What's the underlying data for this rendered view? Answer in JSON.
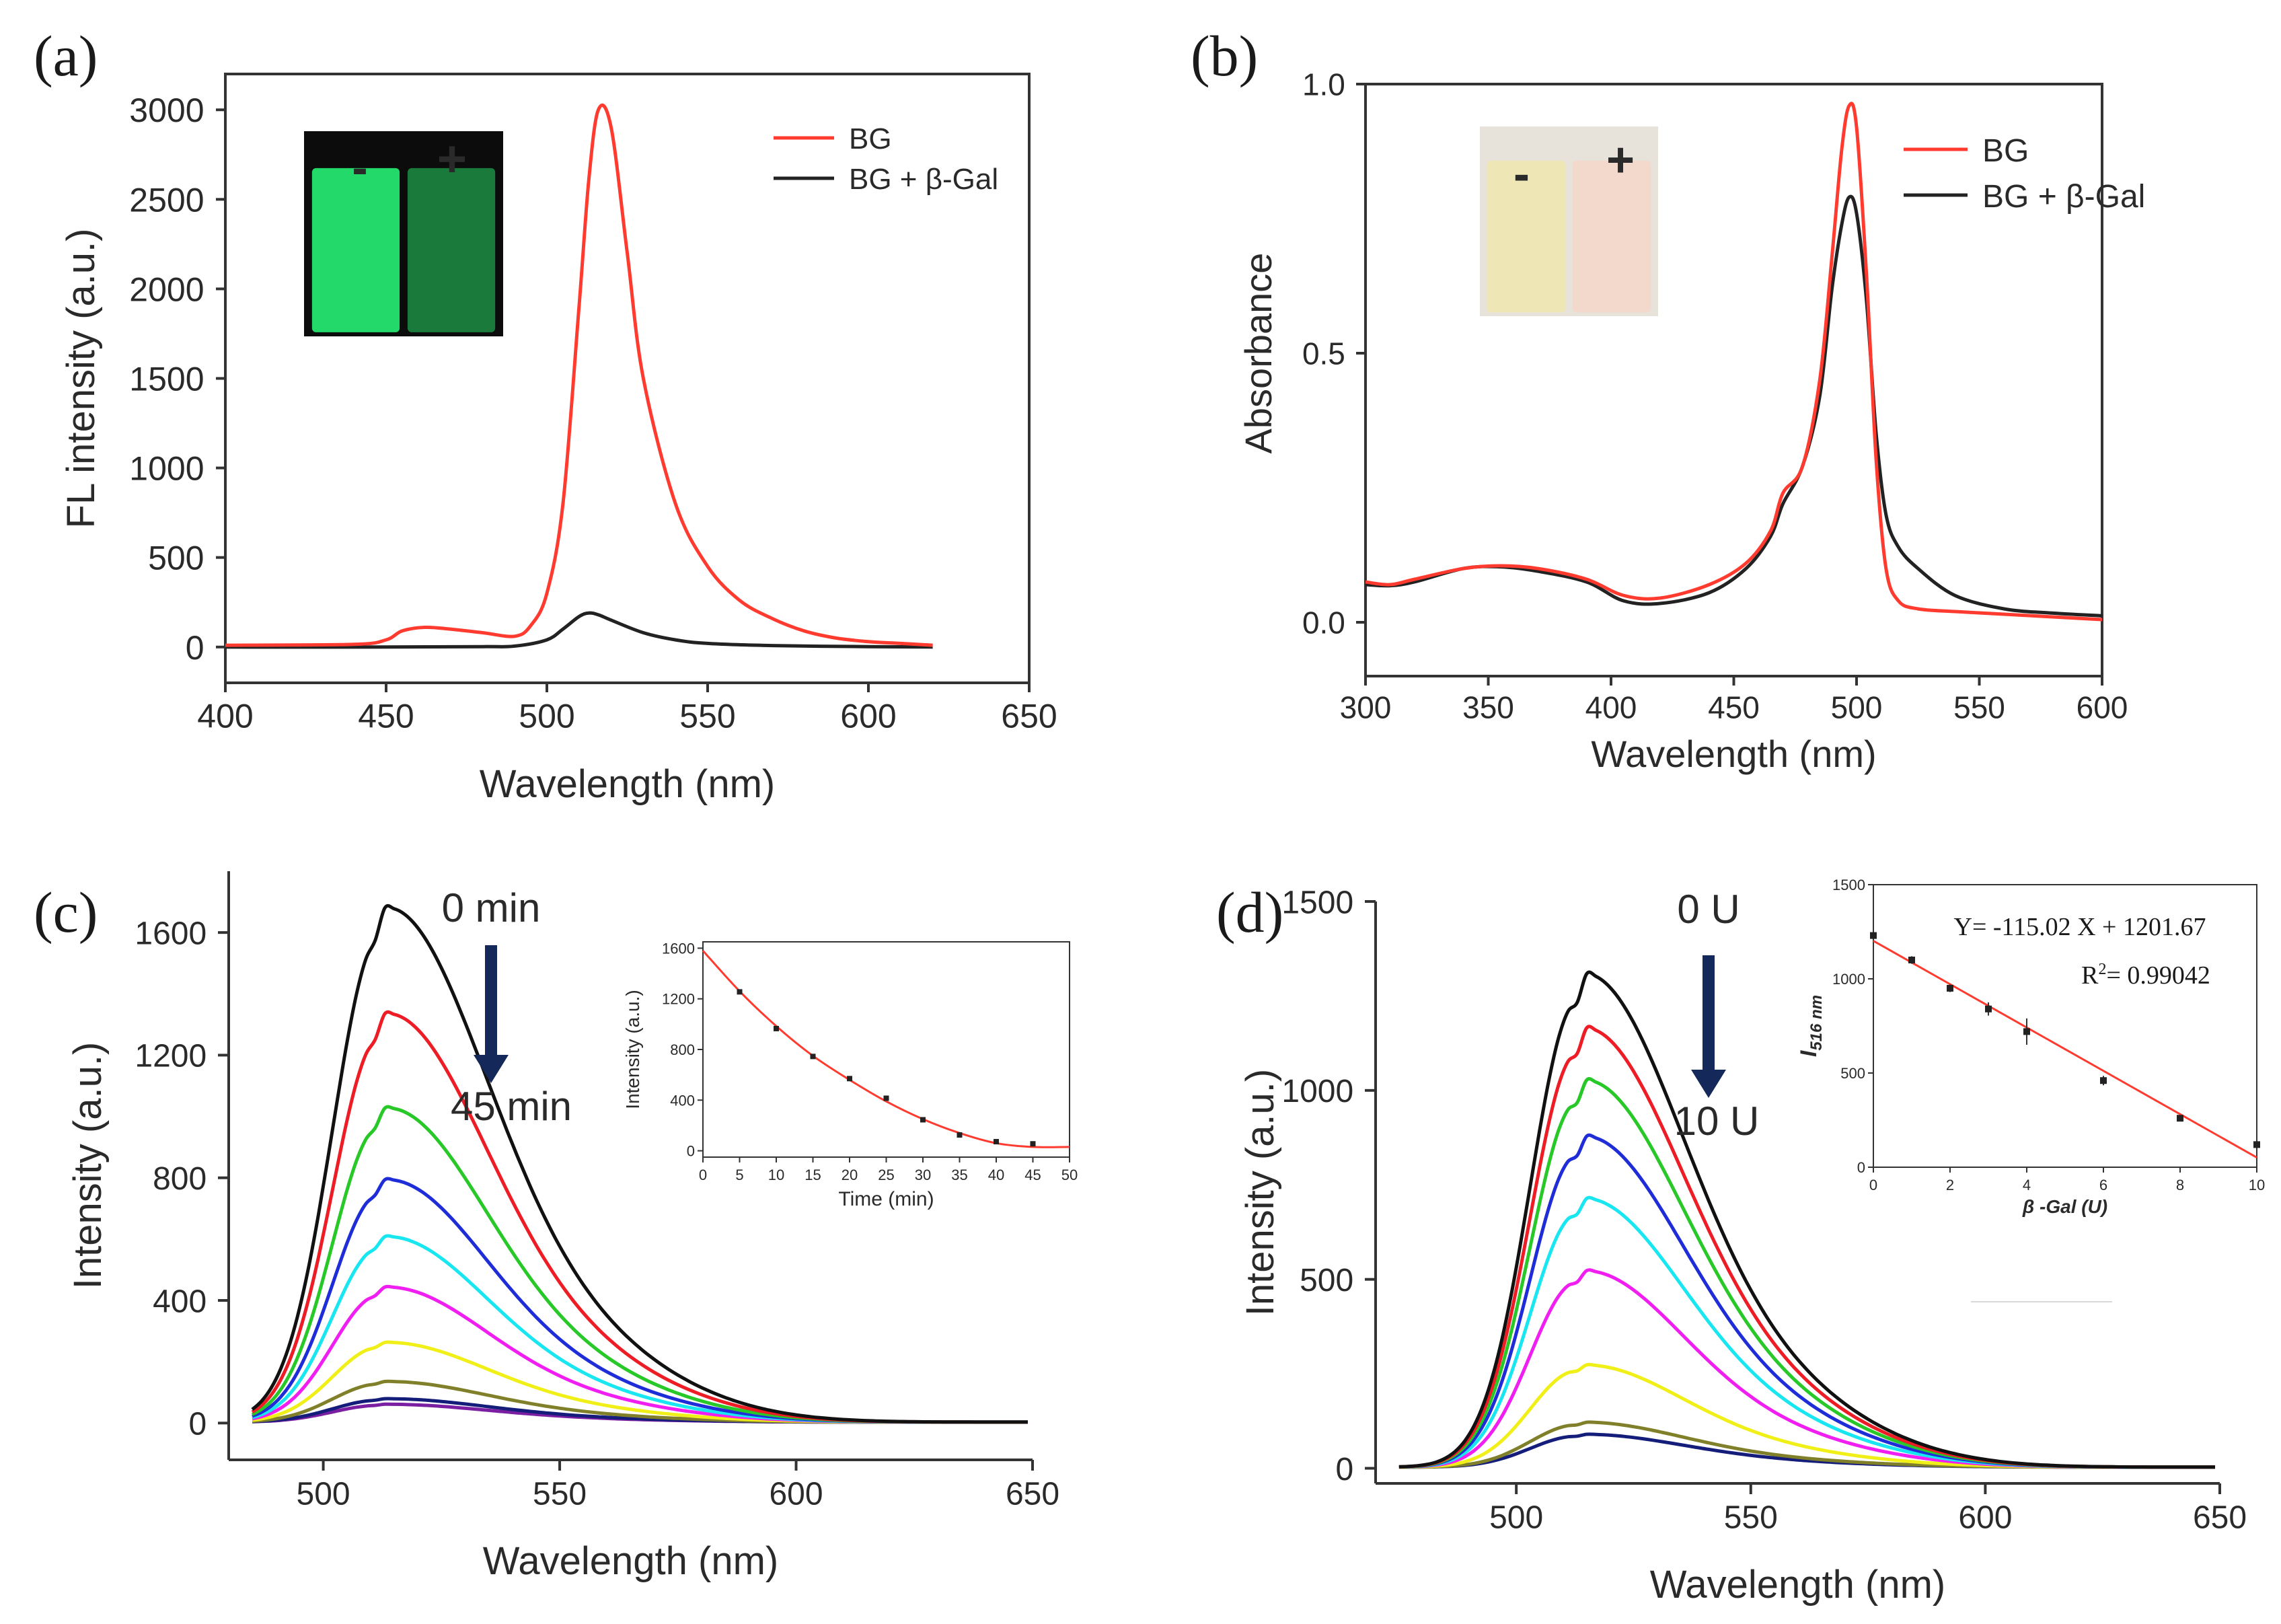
{
  "chart_data": [
    {
      "panel": "(a)",
      "type": "line",
      "xlabel": "Wavelength (nm)",
      "ylabel": "FL intensity (a.u.)",
      "xlim": [
        400,
        650
      ],
      "ylim": [
        -200,
        3200
      ],
      "xticks": [
        400,
        450,
        500,
        550,
        600,
        650
      ],
      "yticks": [
        0,
        500,
        1000,
        1500,
        2000,
        2500,
        3000
      ],
      "legend": "top-right",
      "inset_photo": {
        "labels": [
          "-",
          "+"
        ]
      },
      "series": [
        {
          "name": "BG",
          "color": "#ff3b30",
          "x": [
            400,
            440,
            450,
            455,
            462,
            470,
            480,
            490,
            495,
            500,
            505,
            510,
            513,
            516,
            520,
            525,
            530,
            540,
            550,
            560,
            570,
            580,
            590,
            600,
            610,
            620
          ],
          "y": [
            10,
            15,
            40,
            90,
            110,
            100,
            80,
            60,
            120,
            300,
            800,
            1900,
            2600,
            3000,
            2900,
            2200,
            1500,
            800,
            450,
            260,
            160,
            90,
            50,
            30,
            20,
            10
          ]
        },
        {
          "name": "BG + β-Gal",
          "color": "#222222",
          "x": [
            400,
            450,
            480,
            490,
            500,
            505,
            510,
            513,
            516,
            520,
            530,
            540,
            550,
            570,
            600,
            620
          ],
          "y": [
            0,
            0,
            2,
            5,
            40,
            100,
            170,
            190,
            180,
            150,
            80,
            40,
            20,
            8,
            2,
            0
          ]
        }
      ]
    },
    {
      "panel": "(b)",
      "type": "line",
      "xlabel": "Wavelength (nm)",
      "ylabel": "Absorbance",
      "xlim": [
        300,
        600
      ],
      "ylim": [
        -0.1,
        1.0
      ],
      "xticks": [
        300,
        350,
        400,
        450,
        500,
        550,
        600
      ],
      "yticks": [
        0.0,
        0.5,
        1.0
      ],
      "legend": "top-right",
      "inset_photo": {
        "labels": [
          "-",
          "+"
        ]
      },
      "series": [
        {
          "name": "BG",
          "color": "#ff3b30",
          "x": [
            300,
            310,
            320,
            340,
            355,
            370,
            390,
            405,
            420,
            440,
            455,
            465,
            470,
            478,
            485,
            490,
            494,
            497,
            500,
            504,
            508,
            512,
            517,
            525,
            540,
            560,
            580,
            600
          ],
          "y": [
            0.075,
            0.07,
            0.08,
            0.1,
            0.105,
            0.1,
            0.08,
            0.05,
            0.045,
            0.07,
            0.11,
            0.17,
            0.24,
            0.29,
            0.45,
            0.68,
            0.88,
            0.96,
            0.92,
            0.65,
            0.3,
            0.1,
            0.04,
            0.025,
            0.02,
            0.015,
            0.01,
            0.005
          ]
        },
        {
          "name": "BG + β-Gal",
          "color": "#222222",
          "x": [
            300,
            310,
            320,
            340,
            355,
            370,
            390,
            405,
            420,
            440,
            455,
            465,
            470,
            478,
            485,
            490,
            494,
            497,
            500,
            504,
            508,
            512,
            517,
            525,
            540,
            560,
            580,
            600
          ],
          "y": [
            0.07,
            0.068,
            0.075,
            0.1,
            0.103,
            0.095,
            0.075,
            0.04,
            0.035,
            0.055,
            0.1,
            0.16,
            0.22,
            0.29,
            0.42,
            0.62,
            0.74,
            0.79,
            0.76,
            0.6,
            0.35,
            0.2,
            0.14,
            0.1,
            0.05,
            0.025,
            0.017,
            0.012
          ]
        }
      ]
    },
    {
      "panel": "(c)",
      "type": "line",
      "xlabel": "Wavelength (nm)",
      "ylabel": "Intensity (a.u.)",
      "xlim": [
        480,
        650
      ],
      "ylim": [
        -120,
        1800
      ],
      "xticks": [
        500,
        550,
        600,
        650
      ],
      "yticks": [
        0,
        400,
        800,
        1200,
        1600
      ],
      "annotations": {
        "start": "0 min",
        "end": "45 min"
      },
      "peak_wavelength": 512,
      "series": [
        {
          "color": "#111111",
          "peak": 1580
        },
        {
          "color": "#ee1c25",
          "peak": 1255
        },
        {
          "color": "#27c827",
          "peak": 965
        },
        {
          "color": "#1e2dd8",
          "peak": 745
        },
        {
          "color": "#18e6f0",
          "peak": 570
        },
        {
          "color": "#f01ef0",
          "peak": 415
        },
        {
          "color": "#f0f018",
          "peak": 245
        },
        {
          "color": "#80802a",
          "peak": 125
        },
        {
          "color": "#151d7a",
          "peak": 72
        },
        {
          "color": "#7b1fa2",
          "peak": 55
        }
      ],
      "inset": {
        "type": "scatter",
        "xlabel": "Time (min)",
        "ylabel": "Intensity (a.u.)",
        "xlim": [
          0,
          50
        ],
        "ylim": [
          -50,
          1650
        ],
        "xticks": [
          0,
          5,
          10,
          15,
          20,
          25,
          30,
          35,
          40,
          45,
          50
        ],
        "yticks": [
          0,
          400,
          800,
          1200,
          1600
        ],
        "points": {
          "x": [
            5,
            10,
            15,
            20,
            25,
            30,
            35,
            40,
            45
          ],
          "y": [
            1255,
            965,
            745,
            570,
            415,
            245,
            125,
            72,
            55
          ]
        },
        "fit": {
          "x": [
            0,
            5,
            10,
            15,
            20,
            25,
            30,
            35,
            40,
            45,
            50
          ],
          "y": [
            1580,
            1260,
            985,
            750,
            560,
            390,
            250,
            140,
            60,
            30,
            30
          ]
        }
      }
    },
    {
      "panel": "(d)",
      "type": "line",
      "xlabel": "Wavelength (nm)",
      "ylabel": "Intensity (a.u.)",
      "xlim": [
        470,
        650
      ],
      "ylim": [
        -40,
        1500
      ],
      "xticks": [
        500,
        550,
        600,
        650
      ],
      "yticks": [
        0,
        500,
        1000,
        1500
      ],
      "annotations": {
        "start": "0 U",
        "end": "10 U"
      },
      "peak_wavelength": 513,
      "series": [
        {
          "color": "#111111",
          "peak": 1230
        },
        {
          "color": "#ee1c25",
          "peak": 1095
        },
        {
          "color": "#27c827",
          "peak": 965
        },
        {
          "color": "#1e2dd8",
          "peak": 825
        },
        {
          "color": "#18e6f0",
          "peak": 670
        },
        {
          "color": "#f01ef0",
          "peak": 490
        },
        {
          "color": "#f0f018",
          "peak": 255
        },
        {
          "color": "#80802a",
          "peak": 112
        },
        {
          "color": "#151d7a",
          "peak": 82
        }
      ],
      "inset": {
        "type": "scatter",
        "xlabel": "β -Gal (U)",
        "ylabel_main": "I",
        "ylabel_sub": "516 nm",
        "xlim": [
          0,
          10
        ],
        "ylim": [
          0,
          1500
        ],
        "xticks": [
          0,
          2,
          4,
          6,
          8,
          10
        ],
        "yticks": [
          0,
          500,
          1000,
          1500
        ],
        "equation": "Y= -115.02 X + 1201.67",
        "r2_label": "R",
        "r2_sup": "2",
        "r2_value": "= 0.99042",
        "points": {
          "x": [
            0,
            1,
            2,
            3,
            4,
            6,
            8,
            10
          ],
          "y": [
            1230,
            1100,
            950,
            840,
            720,
            460,
            260,
            120
          ],
          "err": [
            15,
            20,
            20,
            35,
            70,
            25,
            15,
            10
          ]
        },
        "fit": {
          "slope": -115.02,
          "intercept": 1201.67
        }
      }
    }
  ]
}
